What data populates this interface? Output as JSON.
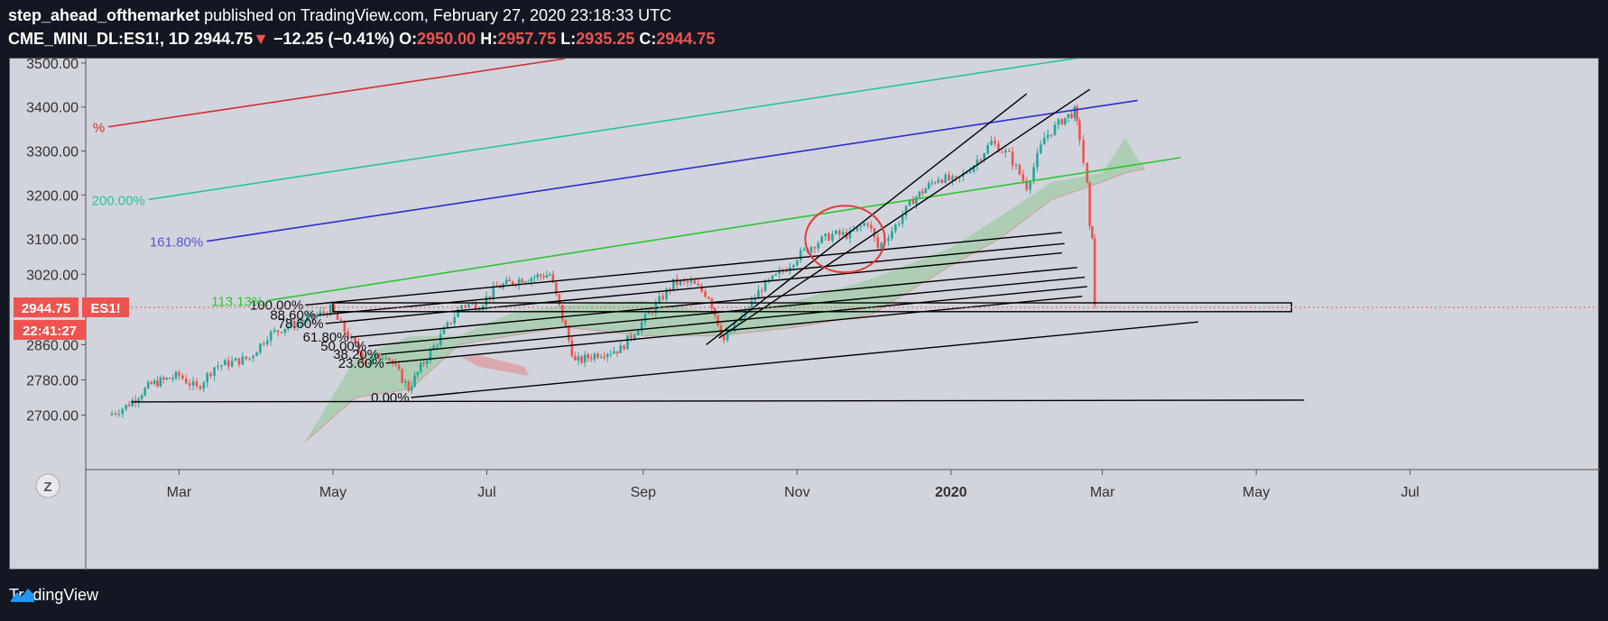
{
  "header": {
    "author": "step_ahead_ofthemarket",
    "published": " published on TradingView.com, February 27, 2020 23:18:33 UTC",
    "symbol": "CME_MINI_DL:ES1!, 1D",
    "last": "2944.75",
    "arrow": "▼",
    "change": "−12.25 (−0.41%)",
    "o_label": "O:",
    "o_value": "2950.00",
    "h_label": "H:",
    "h_value": "2957.75",
    "l_label": "L:",
    "l_value": "2935.25",
    "c_label": "C:",
    "c_value": "2944.75"
  },
  "badges": {
    "price": "2944.75",
    "ticker": "ES1!",
    "countdown": "22:41:27",
    "z_button": "Z"
  },
  "footer": {
    "brand": "TradingView"
  },
  "colors": {
    "up": "#26a69a",
    "down": "#ef5350",
    "background": "#d1d4dc",
    "page": "#131722",
    "cloud_bull": "#81c784",
    "cloud_bear": "#e57373"
  },
  "chart_data": {
    "type": "candlestick",
    "symbol": "ES1!",
    "timeframe": "1D",
    "x_ticks": [
      "Mar",
      "May",
      "Jul",
      "Sep",
      "Nov",
      "2020",
      "Mar",
      "May",
      "Jul"
    ],
    "y_ticks": [
      "3500.00",
      "3400.00",
      "3300.00",
      "3200.00",
      "3100.00",
      "3020.00",
      "2860.00",
      "2780.00",
      "2700.00"
    ],
    "ylim": [
      2640,
      3520
    ],
    "grid": false,
    "fib_levels": [
      "100.00%",
      "88.60%",
      "78.60%",
      "61.80%",
      "50.00%",
      "38.20%",
      "23.60%",
      "0.00%"
    ],
    "extension_labels": [
      "200.00%",
      "161.80%",
      "113.13%",
      "%"
    ],
    "price_path": [
      [
        "2019-02-01",
        2700
      ],
      [
        "2019-02-08",
        2720
      ],
      [
        "2019-02-18",
        2770
      ],
      [
        "2019-03-01",
        2790
      ],
      [
        "2019-03-08",
        2760
      ],
      [
        "2019-03-15",
        2810
      ],
      [
        "2019-03-22",
        2820
      ],
      [
        "2019-03-29",
        2830
      ],
      [
        "2019-04-05",
        2880
      ],
      [
        "2019-04-12",
        2900
      ],
      [
        "2019-04-22",
        2920
      ],
      [
        "2019-04-30",
        2940
      ],
      [
        "2019-05-07",
        2880
      ],
      [
        "2019-05-14",
        2820
      ],
      [
        "2019-05-22",
        2840
      ],
      [
        "2019-05-31",
        2760
      ],
      [
        "2019-06-06",
        2820
      ],
      [
        "2019-06-14",
        2890
      ],
      [
        "2019-06-21",
        2950
      ],
      [
        "2019-06-28",
        2950
      ],
      [
        "2019-07-05",
        2990
      ],
      [
        "2019-07-15",
        3010
      ],
      [
        "2019-07-26",
        3020
      ],
      [
        "2019-08-05",
        2820
      ],
      [
        "2019-08-14",
        2840
      ],
      [
        "2019-08-23",
        2850
      ],
      [
        "2019-08-30",
        2900
      ],
      [
        "2019-09-06",
        2950
      ],
      [
        "2019-09-13",
        3000
      ],
      [
        "2019-09-20",
        3000
      ],
      [
        "2019-09-27",
        2970
      ],
      [
        "2019-10-03",
        2870
      ],
      [
        "2019-10-10",
        2920
      ],
      [
        "2019-10-18",
        2990
      ],
      [
        "2019-10-25",
        3020
      ],
      [
        "2019-11-01",
        3060
      ],
      [
        "2019-11-08",
        3090
      ],
      [
        "2019-11-15",
        3110
      ],
      [
        "2019-11-22",
        3110
      ],
      [
        "2019-11-29",
        3140
      ],
      [
        "2019-12-03",
        3080
      ],
      [
        "2019-12-10",
        3130
      ],
      [
        "2019-12-17",
        3190
      ],
      [
        "2019-12-27",
        3240
      ],
      [
        "2020-01-03",
        3230
      ],
      [
        "2020-01-10",
        3270
      ],
      [
        "2020-01-17",
        3320
      ],
      [
        "2020-01-24",
        3290
      ],
      [
        "2020-01-31",
        3220
      ],
      [
        "2020-02-07",
        3330
      ],
      [
        "2020-02-14",
        3370
      ],
      [
        "2020-02-19",
        3390
      ],
      [
        "2020-02-21",
        3330
      ],
      [
        "2020-02-24",
        3220
      ],
      [
        "2020-02-25",
        3120
      ],
      [
        "2020-02-26",
        3110
      ],
      [
        "2020-02-27",
        2944.75
      ]
    ]
  }
}
